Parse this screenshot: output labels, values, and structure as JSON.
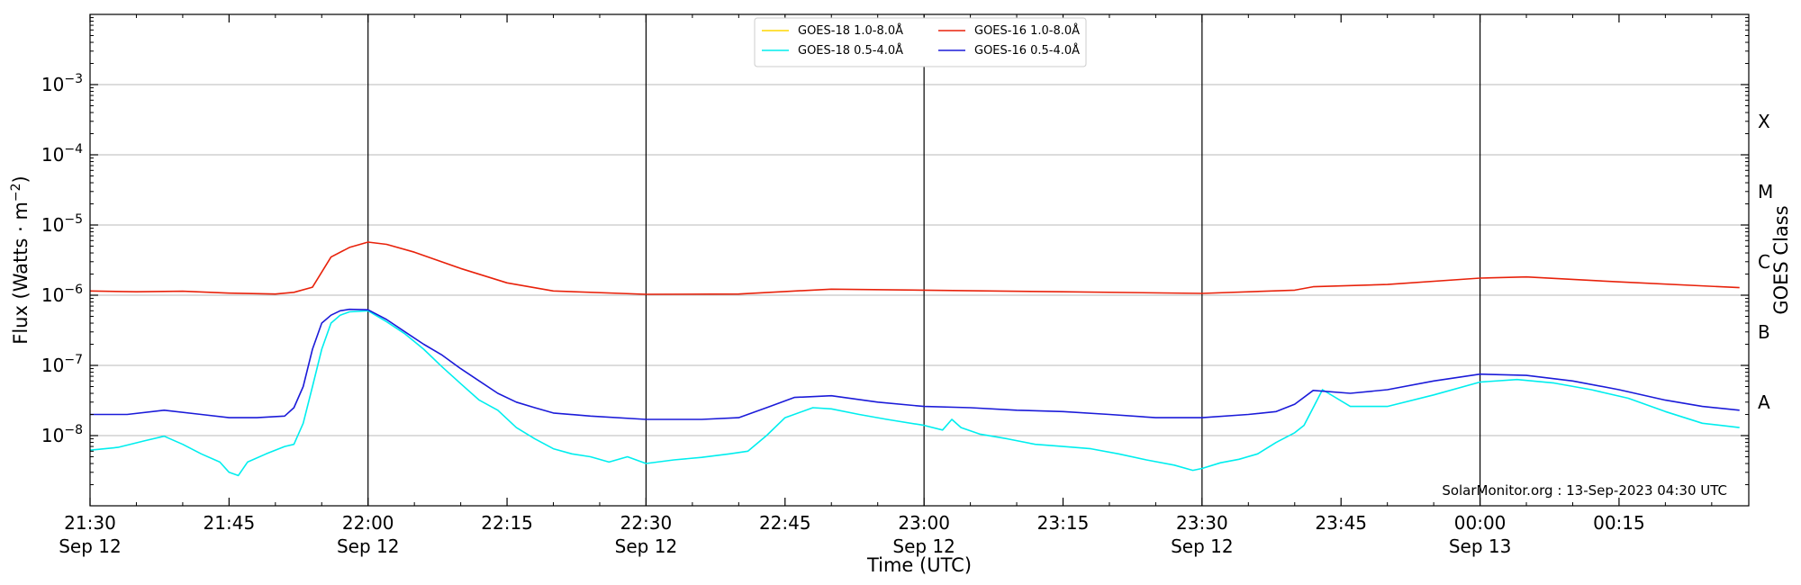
{
  "chart_data": {
    "type": "line",
    "xlabel": "Time (UTC)",
    "ylabel_prefix": "Flux (Watts · m",
    "ylabel_exp": "−2",
    "ylabel_suffix": ")",
    "y2label": "GOES Class",
    "yscale": "log",
    "ylim": [
      1e-09,
      0.01
    ],
    "xlim": [
      "2023-09-12 21:30",
      "2023-09-13 00:29"
    ],
    "grid": "horizontal",
    "legend_position": "top-center",
    "credit": "SolarMonitor.org : 13-Sep-2023 04:30 UTC",
    "y_ticks": [
      {
        "value": 1e-08,
        "base": "10",
        "exp": "−8"
      },
      {
        "value": 1e-07,
        "base": "10",
        "exp": "−7"
      },
      {
        "value": 1e-06,
        "base": "10",
        "exp": "−6"
      },
      {
        "value": 1e-05,
        "base": "10",
        "exp": "−5"
      },
      {
        "value": 0.0001,
        "base": "10",
        "exp": "−4"
      },
      {
        "value": 0.001,
        "base": "10",
        "exp": "−3"
      }
    ],
    "x_ticks": [
      {
        "t": "2023-09-12 21:30",
        "line1": "21:30",
        "line2": "Sep 12"
      },
      {
        "t": "2023-09-12 21:45",
        "line1": "21:45",
        "line2": ""
      },
      {
        "t": "2023-09-12 22:00",
        "line1": "22:00",
        "line2": "Sep 12"
      },
      {
        "t": "2023-09-12 22:15",
        "line1": "22:15",
        "line2": ""
      },
      {
        "t": "2023-09-12 22:30",
        "line1": "22:30",
        "line2": "Sep 12"
      },
      {
        "t": "2023-09-12 22:45",
        "line1": "22:45",
        "line2": ""
      },
      {
        "t": "2023-09-12 23:00",
        "line1": "23:00",
        "line2": "Sep 12"
      },
      {
        "t": "2023-09-12 23:15",
        "line1": "23:15",
        "line2": ""
      },
      {
        "t": "2023-09-12 23:30",
        "line1": "23:30",
        "line2": "Sep 12"
      },
      {
        "t": "2023-09-12 23:45",
        "line1": "23:45",
        "line2": ""
      },
      {
        "t": "2023-09-13 00:00",
        "line1": "00:00",
        "line2": "Sep 13"
      },
      {
        "t": "2023-09-13 00:15",
        "line1": "00:15",
        "line2": ""
      }
    ],
    "vlines": [
      "2023-09-12 22:00",
      "2023-09-12 22:30",
      "2023-09-12 23:00",
      "2023-09-12 23:30",
      "2023-09-13 00:00"
    ],
    "goes_classes": [
      {
        "label": "A",
        "value": 3e-08
      },
      {
        "label": "B",
        "value": 3e-07
      },
      {
        "label": "C",
        "value": 3e-06
      },
      {
        "label": "M",
        "value": 3e-05
      },
      {
        "label": "X",
        "value": 0.0003
      }
    ],
    "series": [
      {
        "name": "GOES-18 1.0-8.0Å",
        "color": "#ffd700",
        "x": [],
        "y": []
      },
      {
        "name": "GOES-16 1.0-8.0Å",
        "color": "#e8220b",
        "x": [
          "2023-09-12 21:30",
          "2023-09-12 21:35",
          "2023-09-12 21:40",
          "2023-09-12 21:45",
          "2023-09-12 21:50",
          "2023-09-12 21:52",
          "2023-09-12 21:54",
          "2023-09-12 21:56",
          "2023-09-12 21:58",
          "2023-09-12 22:00",
          "2023-09-12 22:02",
          "2023-09-12 22:05",
          "2023-09-12 22:10",
          "2023-09-12 22:15",
          "2023-09-12 22:20",
          "2023-09-12 22:30",
          "2023-09-12 22:40",
          "2023-09-12 22:45",
          "2023-09-12 22:50",
          "2023-09-12 23:00",
          "2023-09-12 23:15",
          "2023-09-12 23:30",
          "2023-09-12 23:40",
          "2023-09-12 23:42",
          "2023-09-12 23:50",
          "2023-09-13 00:00",
          "2023-09-13 00:05",
          "2023-09-13 00:15",
          "2023-09-13 00:28"
        ],
        "y": [
          1.15e-06,
          1.12e-06,
          1.14e-06,
          1.07e-06,
          1.04e-06,
          1.1e-06,
          1.3e-06,
          3.5e-06,
          4.8e-06,
          5.7e-06,
          5.3e-06,
          4.1e-06,
          2.4e-06,
          1.5e-06,
          1.15e-06,
          1.03e-06,
          1.04e-06,
          1.13e-06,
          1.22e-06,
          1.18e-06,
          1.12e-06,
          1.06e-06,
          1.18e-06,
          1.32e-06,
          1.42e-06,
          1.75e-06,
          1.82e-06,
          1.55e-06,
          1.28e-06
        ]
      },
      {
        "name": "GOES-18 0.5-4.0Å",
        "color": "#00eeee",
        "x": [
          "2023-09-12 21:30",
          "2023-09-12 21:33",
          "2023-09-12 21:36",
          "2023-09-12 21:38",
          "2023-09-12 21:40",
          "2023-09-12 21:42",
          "2023-09-12 21:44",
          "2023-09-12 21:45",
          "2023-09-12 21:46",
          "2023-09-12 21:47",
          "2023-09-12 21:49",
          "2023-09-12 21:51",
          "2023-09-12 21:52",
          "2023-09-12 21:53",
          "2023-09-12 21:54",
          "2023-09-12 21:55",
          "2023-09-12 21:56",
          "2023-09-12 21:57",
          "2023-09-12 21:58",
          "2023-09-12 22:00",
          "2023-09-12 22:02",
          "2023-09-12 22:04",
          "2023-09-12 22:06",
          "2023-09-12 22:08",
          "2023-09-12 22:10",
          "2023-09-12 22:12",
          "2023-09-12 22:14",
          "2023-09-12 22:16",
          "2023-09-12 22:18",
          "2023-09-12 22:20",
          "2023-09-12 22:22",
          "2023-09-12 22:24",
          "2023-09-12 22:26",
          "2023-09-12 22:28",
          "2023-09-12 22:30",
          "2023-09-12 22:33",
          "2023-09-12 22:36",
          "2023-09-12 22:39",
          "2023-09-12 22:41",
          "2023-09-12 22:43",
          "2023-09-12 22:45",
          "2023-09-12 22:48",
          "2023-09-12 22:50",
          "2023-09-12 22:53",
          "2023-09-12 22:56",
          "2023-09-12 23:00",
          "2023-09-12 23:02",
          "2023-09-12 23:03",
          "2023-09-12 23:04",
          "2023-09-12 23:06",
          "2023-09-12 23:09",
          "2023-09-12 23:12",
          "2023-09-12 23:15",
          "2023-09-12 23:18",
          "2023-09-12 23:21",
          "2023-09-12 23:24",
          "2023-09-12 23:27",
          "2023-09-12 23:29",
          "2023-09-12 23:30",
          "2023-09-12 23:32",
          "2023-09-12 23:34",
          "2023-09-12 23:36",
          "2023-09-12 23:38",
          "2023-09-12 23:40",
          "2023-09-12 23:41",
          "2023-09-12 23:42",
          "2023-09-12 23:43",
          "2023-09-12 23:46",
          "2023-09-12 23:50",
          "2023-09-12 23:55",
          "2023-09-13 00:00",
          "2023-09-13 00:04",
          "2023-09-13 00:08",
          "2023-09-13 00:12",
          "2023-09-13 00:16",
          "2023-09-13 00:20",
          "2023-09-13 00:24",
          "2023-09-13 00:28"
        ],
        "y": [
          6.2e-09,
          6.8e-09,
          8.5e-09,
          9.8e-09,
          7.5e-09,
          5.5e-09,
          4.2e-09,
          3e-09,
          2.7e-09,
          4.2e-09,
          5.5e-09,
          7e-09,
          7.5e-09,
          1.5e-08,
          5e-08,
          1.7e-07,
          4e-07,
          5.2e-07,
          5.8e-07,
          6e-07,
          4.2e-07,
          2.8e-07,
          1.7e-07,
          9.5e-08,
          5.5e-08,
          3.2e-08,
          2.3e-08,
          1.3e-08,
          9e-09,
          6.5e-09,
          5.5e-09,
          5e-09,
          4.2e-09,
          5e-09,
          4e-09,
          4.5e-09,
          4.9e-09,
          5.5e-09,
          6e-09,
          1e-08,
          1.8e-08,
          2.5e-08,
          2.4e-08,
          2e-08,
          1.7e-08,
          1.4e-08,
          1.2e-08,
          1.7e-08,
          1.3e-08,
          1.05e-08,
          9e-09,
          7.5e-09,
          7e-09,
          6.5e-09,
          5.5e-09,
          4.5e-09,
          3.8e-09,
          3.2e-09,
          3.4e-09,
          4.1e-09,
          4.6e-09,
          5.5e-09,
          8e-09,
          1.1e-08,
          1.4e-08,
          2.5e-08,
          4.5e-08,
          2.6e-08,
          2.6e-08,
          3.8e-08,
          5.8e-08,
          6.3e-08,
          5.6e-08,
          4.5e-08,
          3.4e-08,
          2.2e-08,
          1.5e-08,
          1.3e-08
        ]
      },
      {
        "name": "GOES-16 0.5-4.0Å",
        "color": "#1b1bd9",
        "x": [
          "2023-09-12 21:30",
          "2023-09-12 21:34",
          "2023-09-12 21:38",
          "2023-09-12 21:42",
          "2023-09-12 21:45",
          "2023-09-12 21:48",
          "2023-09-12 21:51",
          "2023-09-12 21:52",
          "2023-09-12 21:53",
          "2023-09-12 21:54",
          "2023-09-12 21:55",
          "2023-09-12 21:56",
          "2023-09-12 21:57",
          "2023-09-12 21:58",
          "2023-09-12 22:00",
          "2023-09-12 22:02",
          "2023-09-12 22:04",
          "2023-09-12 22:06",
          "2023-09-12 22:08",
          "2023-09-12 22:10",
          "2023-09-12 22:12",
          "2023-09-12 22:14",
          "2023-09-12 22:16",
          "2023-09-12 22:18",
          "2023-09-12 22:20",
          "2023-09-12 22:24",
          "2023-09-12 22:30",
          "2023-09-12 22:36",
          "2023-09-12 22:40",
          "2023-09-12 22:43",
          "2023-09-12 22:46",
          "2023-09-12 22:50",
          "2023-09-12 22:55",
          "2023-09-12 23:00",
          "2023-09-12 23:05",
          "2023-09-12 23:10",
          "2023-09-12 23:15",
          "2023-09-12 23:20",
          "2023-09-12 23:25",
          "2023-09-12 23:30",
          "2023-09-12 23:35",
          "2023-09-12 23:38",
          "2023-09-12 23:40",
          "2023-09-12 23:42",
          "2023-09-12 23:46",
          "2023-09-12 23:50",
          "2023-09-12 23:55",
          "2023-09-13 00:00",
          "2023-09-13 00:05",
          "2023-09-13 00:10",
          "2023-09-13 00:15",
          "2023-09-13 00:20",
          "2023-09-13 00:24",
          "2023-09-13 00:28"
        ],
        "y": [
          2e-08,
          2e-08,
          2.3e-08,
          2e-08,
          1.8e-08,
          1.8e-08,
          1.9e-08,
          2.5e-08,
          5e-08,
          1.7e-07,
          4e-07,
          5.2e-07,
          6e-07,
          6.3e-07,
          6.2e-07,
          4.5e-07,
          3e-07,
          2e-07,
          1.4e-07,
          9e-08,
          6e-08,
          4e-08,
          3e-08,
          2.5e-08,
          2.1e-08,
          1.9e-08,
          1.7e-08,
          1.7e-08,
          1.8e-08,
          2.5e-08,
          3.5e-08,
          3.7e-08,
          3e-08,
          2.6e-08,
          2.5e-08,
          2.3e-08,
          2.2e-08,
          2e-08,
          1.8e-08,
          1.8e-08,
          2e-08,
          2.2e-08,
          2.8e-08,
          4.4e-08,
          4e-08,
          4.5e-08,
          6e-08,
          7.5e-08,
          7.2e-08,
          6e-08,
          4.5e-08,
          3.2e-08,
          2.6e-08,
          2.3e-08
        ]
      }
    ]
  }
}
